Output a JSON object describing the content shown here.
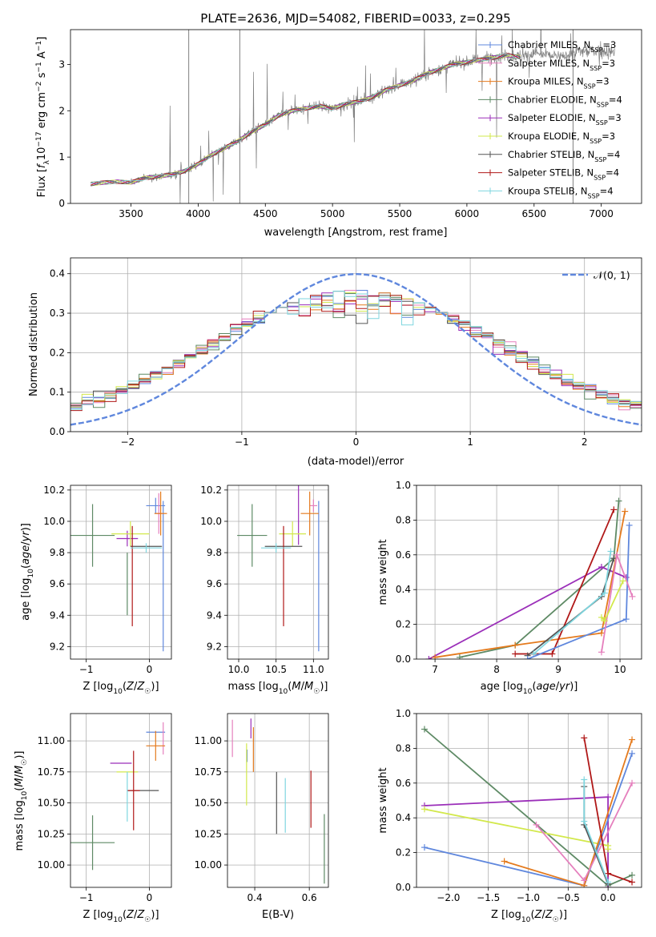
{
  "colors": {
    "Chabrier MILES": "#5f87dd",
    "Salpeter MILES": "#e57fbd",
    "Kroupa MILES": "#e47a1d",
    "Chabrier ELODIE": "#5e8a65",
    "Salpeter ELODIE": "#9b2fb9",
    "Kroupa ELODIE": "#d2e84b",
    "Chabrier STELIB": "#555555",
    "Salpeter STELIB": "#b01818",
    "Kroupa STELIB": "#7fd6df",
    "data": "#808080",
    "normal": "#5f87dd"
  },
  "chart_data": [
    {
      "id": "spectrum",
      "type": "line",
      "title": "PLATE=2636, MJD=54082, FIBERID=0033, z=0.295",
      "xlabel": "wavelength [Angstrom, rest frame]",
      "ylabel": "Flux [f_λ10^−17 erg cm^−2 s^−1 A^−1]",
      "xlim": [
        3050,
        7300
      ],
      "ylim": [
        0,
        3.75
      ],
      "xticks": [
        3500,
        4000,
        4500,
        5000,
        5500,
        6000,
        6500,
        7000
      ],
      "yticks": [
        0,
        1,
        2,
        3
      ],
      "legend_position": "top-right",
      "legend": [
        {
          "name": "Chabrier MILES, N_SSP=3",
          "base": "Chabrier MILES, N",
          "sub": "SSP",
          "tail": "=3"
        },
        {
          "name": "Salpeter MILES, N_SSP=3",
          "base": "Salpeter MILES, N",
          "sub": "SSP",
          "tail": "=3"
        },
        {
          "name": "Kroupa MILES, N_SSP=3",
          "base": "Kroupa MILES, N",
          "sub": "SSP",
          "tail": "=3"
        },
        {
          "name": "Chabrier ELODIE, N_SSP=4",
          "base": "Chabrier ELODIE, N",
          "sub": "SSP",
          "tail": "=4"
        },
        {
          "name": "Salpeter ELODIE, N_SSP=3",
          "base": "Salpeter ELODIE, N",
          "sub": "SSP",
          "tail": "=3"
        },
        {
          "name": "Kroupa ELODIE, N_SSP=3",
          "base": "Kroupa ELODIE, N",
          "sub": "SSP",
          "tail": "=3"
        },
        {
          "name": "Chabrier STELIB, N_SSP=4",
          "base": "Chabrier STELIB, N",
          "sub": "SSP",
          "tail": "=4"
        },
        {
          "name": "Salpeter STELIB, N_SSP=4",
          "base": "Salpeter STELIB, N",
          "sub": "SSP",
          "tail": "=4"
        },
        {
          "name": "Kroupa STELIB, N_SSP=4",
          "base": "Kroupa STELIB, N",
          "sub": "SSP",
          "tail": "=4"
        }
      ],
      "continuum": {
        "x": [
          3200,
          3300,
          3400,
          3500,
          3600,
          3700,
          3800,
          3900,
          4000,
          4100,
          4200,
          4300,
          4400,
          4500,
          4600,
          4700,
          4800,
          4900,
          5000,
          5100,
          5200,
          5300,
          5400,
          5500,
          5600,
          5700,
          5800,
          5900,
          6000,
          6100,
          6200,
          6300,
          6400,
          6500,
          6600,
          6700,
          6800,
          6900,
          7000,
          7100
        ],
        "y": [
          0.42,
          0.45,
          0.47,
          0.45,
          0.55,
          0.58,
          0.62,
          0.7,
          0.85,
          1.05,
          1.2,
          1.35,
          1.55,
          1.7,
          1.9,
          2.0,
          2.05,
          2.1,
          2.05,
          2.15,
          2.2,
          2.3,
          2.45,
          2.55,
          2.65,
          2.8,
          2.9,
          3.0,
          3.05,
          3.1,
          3.15,
          3.2,
          3.15,
          3.25,
          3.2,
          3.15,
          3.25,
          3.3,
          3.3,
          3.25
        ]
      },
      "data_range": [
        3500,
        7100
      ],
      "model_range": [
        3200,
        7100
      ]
    },
    {
      "id": "residuals",
      "type": "line",
      "xlabel": "(data-model)/error",
      "ylabel": "Normed distribution",
      "xlim": [
        -2.5,
        2.5
      ],
      "ylim": [
        0,
        0.44
      ],
      "xticks": [
        -2,
        -1,
        0,
        1,
        2
      ],
      "yticks": [
        0.0,
        0.1,
        0.2,
        0.3,
        0.4
      ],
      "legend_position": "top-right",
      "legend": "𝒩(0, 1)",
      "histogram_bins": [
        -2.5,
        2.5
      ],
      "bin_width": 0.1
    },
    {
      "id": "age-vs-Z",
      "type": "scatter",
      "xlabel": "Z [log10(Z/Z☉)]",
      "ylabel": "age [log10(age/yr)]",
      "xlim": [
        -1.25,
        0.35
      ],
      "ylim": [
        9.12,
        10.23
      ],
      "xticks": [
        -1,
        0
      ],
      "yticks": [
        9.2,
        9.4,
        9.6,
        9.8,
        10.0,
        10.2
      ],
      "points": [
        {
          "model": "Chabrier MILES",
          "x": 0.1,
          "y": 10.1,
          "xerr": 0.15,
          "yerr": 0.05
        },
        {
          "model": "Chabrier MILES",
          "x": 0.22,
          "y": 9.65,
          "xerr": 0.0,
          "yerr": 0.48
        },
        {
          "model": "Salpeter MILES",
          "x": 0.15,
          "y": 10.05,
          "xerr": 0.05,
          "yerr": 0.13
        },
        {
          "model": "Kroupa MILES",
          "x": 0.18,
          "y": 10.05,
          "xerr": 0.1,
          "yerr": 0.14
        },
        {
          "model": "Chabrier ELODIE",
          "x": -0.9,
          "y": 9.91,
          "xerr": 0.35,
          "yerr": 0.2
        },
        {
          "model": "Chabrier ELODIE",
          "x": -0.35,
          "y": 9.6,
          "xerr": 0.0,
          "yerr": 0.2
        },
        {
          "model": "Salpeter ELODIE",
          "x": -0.35,
          "y": 9.89,
          "xerr": 0.17,
          "yerr": 0.05
        },
        {
          "model": "Kroupa ELODIE",
          "x": -0.3,
          "y": 9.92,
          "xerr": 0.3,
          "yerr": 0.08
        },
        {
          "model": "Chabrier STELIB",
          "x": -0.05,
          "y": 9.84,
          "xerr": 0.25,
          "yerr": 0.0
        },
        {
          "model": "Salpeter STELIB",
          "x": -0.27,
          "y": 9.65,
          "xerr": 0.0,
          "yerr": 0.32
        },
        {
          "model": "Kroupa STELIB",
          "x": -0.05,
          "y": 9.83,
          "xerr": 0.25,
          "yerr": 0.03
        }
      ]
    },
    {
      "id": "age-vs-mass",
      "type": "scatter",
      "xlabel": "mass [log10(M/M☉)]",
      "ylabel": "",
      "xlim": [
        9.85,
        11.2
      ],
      "ylim": [
        9.12,
        10.23
      ],
      "xticks": [
        10.0,
        10.5,
        11.0
      ],
      "yticks": [
        9.2,
        9.4,
        9.6,
        9.8,
        10.0,
        10.2
      ],
      "points": [
        {
          "model": "Chabrier MILES",
          "x": 11.07,
          "y": 9.65,
          "xerr": 0.0,
          "yerr": 0.48
        },
        {
          "model": "Salpeter MILES",
          "x": 11.0,
          "y": 10.1,
          "xerr": 0.05,
          "yerr": 0.04
        },
        {
          "model": "Kroupa MILES",
          "x": 10.95,
          "y": 10.05,
          "xerr": 0.12,
          "yerr": 0.14
        },
        {
          "model": "Chabrier ELODIE",
          "x": 10.18,
          "y": 9.91,
          "xerr": 0.2,
          "yerr": 0.2
        },
        {
          "model": "Salpeter ELODIE",
          "x": 10.8,
          "y": 10.05,
          "xerr": 0.0,
          "yerr": 0.2
        },
        {
          "model": "Kroupa ELODIE",
          "x": 10.72,
          "y": 9.92,
          "xerr": 0.18,
          "yerr": 0.08
        },
        {
          "model": "Chabrier STELIB",
          "x": 10.6,
          "y": 9.84,
          "xerr": 0.25,
          "yerr": 0.0
        },
        {
          "model": "Salpeter STELIB",
          "x": 10.6,
          "y": 9.65,
          "xerr": 0.0,
          "yerr": 0.32
        },
        {
          "model": "Kroupa STELIB",
          "x": 10.5,
          "y": 9.83,
          "xerr": 0.2,
          "yerr": 0.03
        }
      ]
    },
    {
      "id": "weight-vs-age",
      "type": "line",
      "xlabel": "age [log10(age/yr)]",
      "ylabel": "mass weight",
      "xlim": [
        6.7,
        10.35
      ],
      "ylim": [
        0,
        1.0
      ],
      "xticks": [
        7,
        8,
        9,
        10
      ],
      "yticks": [
        0.0,
        0.2,
        0.4,
        0.6,
        0.8,
        1.0
      ],
      "series": [
        {
          "model": "Chabrier ELODIE",
          "x": [
            7.4,
            8.3,
            9.9,
            9.98
          ],
          "y": [
            0.01,
            0.08,
            0.58,
            0.91
          ]
        },
        {
          "model": "Salpeter ELODIE",
          "x": [
            6.9,
            9.7,
            10.1
          ],
          "y": [
            0.0,
            0.53,
            0.47
          ]
        },
        {
          "model": "Kroupa MILES",
          "x": [
            7.0,
            8.3,
            9.7,
            10.08
          ],
          "y": [
            0.01,
            0.08,
            0.15,
            0.85
          ]
        },
        {
          "model": "Salpeter STELIB",
          "x": [
            8.3,
            8.9,
            9.9
          ],
          "y": [
            0.03,
            0.03,
            0.86
          ]
        },
        {
          "model": "Chabrier STELIB",
          "x": [
            8.5,
            9.7,
            9.9
          ],
          "y": [
            0.02,
            0.36,
            0.58
          ]
        },
        {
          "model": "Kroupa STELIB",
          "x": [
            8.6,
            9.75,
            9.85
          ],
          "y": [
            0.03,
            0.38,
            0.62
          ]
        },
        {
          "model": "Chabrier MILES",
          "x": [
            8.5,
            10.1,
            10.15
          ],
          "y": [
            0.0,
            0.23,
            0.77
          ]
        },
        {
          "model": "Salpeter MILES",
          "x": [
            9.7,
            9.95,
            10.2
          ],
          "y": [
            0.04,
            0.6,
            0.36
          ]
        },
        {
          "model": "Kroupa ELODIE",
          "x": [
            9.7,
            9.75,
            10.05
          ],
          "y": [
            0.24,
            0.22,
            0.45
          ]
        }
      ]
    },
    {
      "id": "mass-vs-Z",
      "type": "scatter",
      "xlabel": "Z [log10(Z/Z☉)]",
      "ylabel": "mass [log10(M/M☉)]",
      "xlim": [
        -1.25,
        0.35
      ],
      "ylim": [
        9.82,
        11.22
      ],
      "xticks": [
        -1,
        0
      ],
      "yticks": [
        10.0,
        10.25,
        10.5,
        10.75,
        11.0
      ],
      "points": [
        {
          "model": "Chabrier MILES",
          "x": 0.1,
          "y": 11.07,
          "xerr": 0.15,
          "yerr": 0.0
        },
        {
          "model": "Salpeter MILES",
          "x": 0.22,
          "y": 11.02,
          "xerr": 0.0,
          "yerr": 0.13
        },
        {
          "model": "Kroupa MILES",
          "x": 0.1,
          "y": 10.96,
          "xerr": 0.15,
          "yerr": 0.12
        },
        {
          "model": "Chabrier ELODIE",
          "x": -0.9,
          "y": 10.18,
          "xerr": 0.35,
          "yerr": 0.22
        },
        {
          "model": "Salpeter ELODIE",
          "x": -0.45,
          "y": 10.82,
          "xerr": 0.17,
          "yerr": 0.0
        },
        {
          "model": "Kroupa ELODIE",
          "x": -0.35,
          "y": 10.75,
          "xerr": 0.17,
          "yerr": 0.0
        },
        {
          "model": "Chabrier STELIB",
          "x": -0.1,
          "y": 10.6,
          "xerr": 0.25,
          "yerr": 0.0
        },
        {
          "model": "Salpeter STELIB",
          "x": -0.25,
          "y": 10.6,
          "xerr": 0.1,
          "yerr": 0.32
        },
        {
          "model": "Kroupa STELIB",
          "x": -0.35,
          "y": 10.55,
          "xerr": 0.0,
          "yerr": 0.2
        }
      ]
    },
    {
      "id": "mass-vs-EBV",
      "type": "scatter",
      "xlabel": "E(B-V)",
      "ylabel": "",
      "xlim": [
        0.3,
        0.67
      ],
      "ylim": [
        9.82,
        11.22
      ],
      "xticks": [
        0.4,
        0.6
      ],
      "yticks": [
        10.0,
        10.25,
        10.5,
        10.75,
        11.0
      ],
      "points": [
        {
          "model": "Chabrier MILES",
          "x": 0.372,
          "y": 10.88,
          "xerr": 0.0,
          "yerr": 0.05
        },
        {
          "model": "Salpeter MILES",
          "x": 0.318,
          "y": 11.02,
          "xerr": 0.0,
          "yerr": 0.15
        },
        {
          "model": "Kroupa MILES",
          "x": 0.395,
          "y": 10.93,
          "xerr": 0.0,
          "yerr": 0.18
        },
        {
          "model": "Chabrier ELODIE",
          "x": 0.655,
          "y": 10.13,
          "xerr": 0.0,
          "yerr": 0.28
        },
        {
          "model": "Salpeter ELODIE",
          "x": 0.386,
          "y": 11.1,
          "xerr": 0.0,
          "yerr": 0.08
        },
        {
          "model": "Kroupa ELODIE",
          "x": 0.37,
          "y": 10.73,
          "xerr": 0.0,
          "yerr": 0.25
        },
        {
          "model": "Chabrier STELIB",
          "x": 0.48,
          "y": 10.5,
          "xerr": 0.0,
          "yerr": 0.25
        },
        {
          "model": "Salpeter STELIB",
          "x": 0.606,
          "y": 10.53,
          "xerr": 0.0,
          "yerr": 0.23
        },
        {
          "model": "Kroupa STELIB",
          "x": 0.512,
          "y": 10.48,
          "xerr": 0.0,
          "yerr": 0.22
        }
      ]
    },
    {
      "id": "weight-vs-Z",
      "type": "line",
      "xlabel": "Z [log10(Z/Z☉)]",
      "ylabel": "mass weight",
      "xlim": [
        -2.4,
        0.42
      ],
      "ylim": [
        0,
        1.0
      ],
      "xticks": [
        -2.0,
        -1.5,
        -1.0,
        -0.5,
        0.0
      ],
      "yticks": [
        0.0,
        0.2,
        0.4,
        0.6,
        0.8,
        1.0
      ],
      "series": [
        {
          "model": "Chabrier ELODIE",
          "x": [
            -2.3,
            0.0,
            0.3
          ],
          "y": [
            0.91,
            0.01,
            0.07
          ]
        },
        {
          "model": "Salpeter ELODIE",
          "x": [
            -2.3,
            0.0,
            0.0
          ],
          "y": [
            0.47,
            0.52,
            0.0
          ]
        },
        {
          "model": "Kroupa ELODIE",
          "x": [
            -2.3,
            0.0,
            0.0
          ],
          "y": [
            0.45,
            0.24,
            0.22
          ]
        },
        {
          "model": "Chabrier MILES",
          "x": [
            -2.3,
            -0.3,
            0.3
          ],
          "y": [
            0.23,
            0.01,
            0.77
          ]
        },
        {
          "model": "Kroupa MILES",
          "x": [
            -1.3,
            -0.3,
            0.3
          ],
          "y": [
            0.15,
            0.01,
            0.85
          ]
        },
        {
          "model": "Salpeter MILES",
          "x": [
            -0.9,
            -0.3,
            0.3
          ],
          "y": [
            0.36,
            0.04,
            0.6
          ]
        },
        {
          "model": "Salpeter STELIB",
          "x": [
            -0.3,
            0.0,
            0.3
          ],
          "y": [
            0.86,
            0.08,
            0.03
          ]
        },
        {
          "model": "Chabrier STELIB",
          "x": [
            -0.3,
            -0.3,
            0.0
          ],
          "y": [
            0.58,
            0.36,
            0.02
          ]
        },
        {
          "model": "Kroupa STELIB",
          "x": [
            -0.3,
            -0.3,
            0.0
          ],
          "y": [
            0.62,
            0.38,
            0.03
          ]
        }
      ]
    }
  ]
}
